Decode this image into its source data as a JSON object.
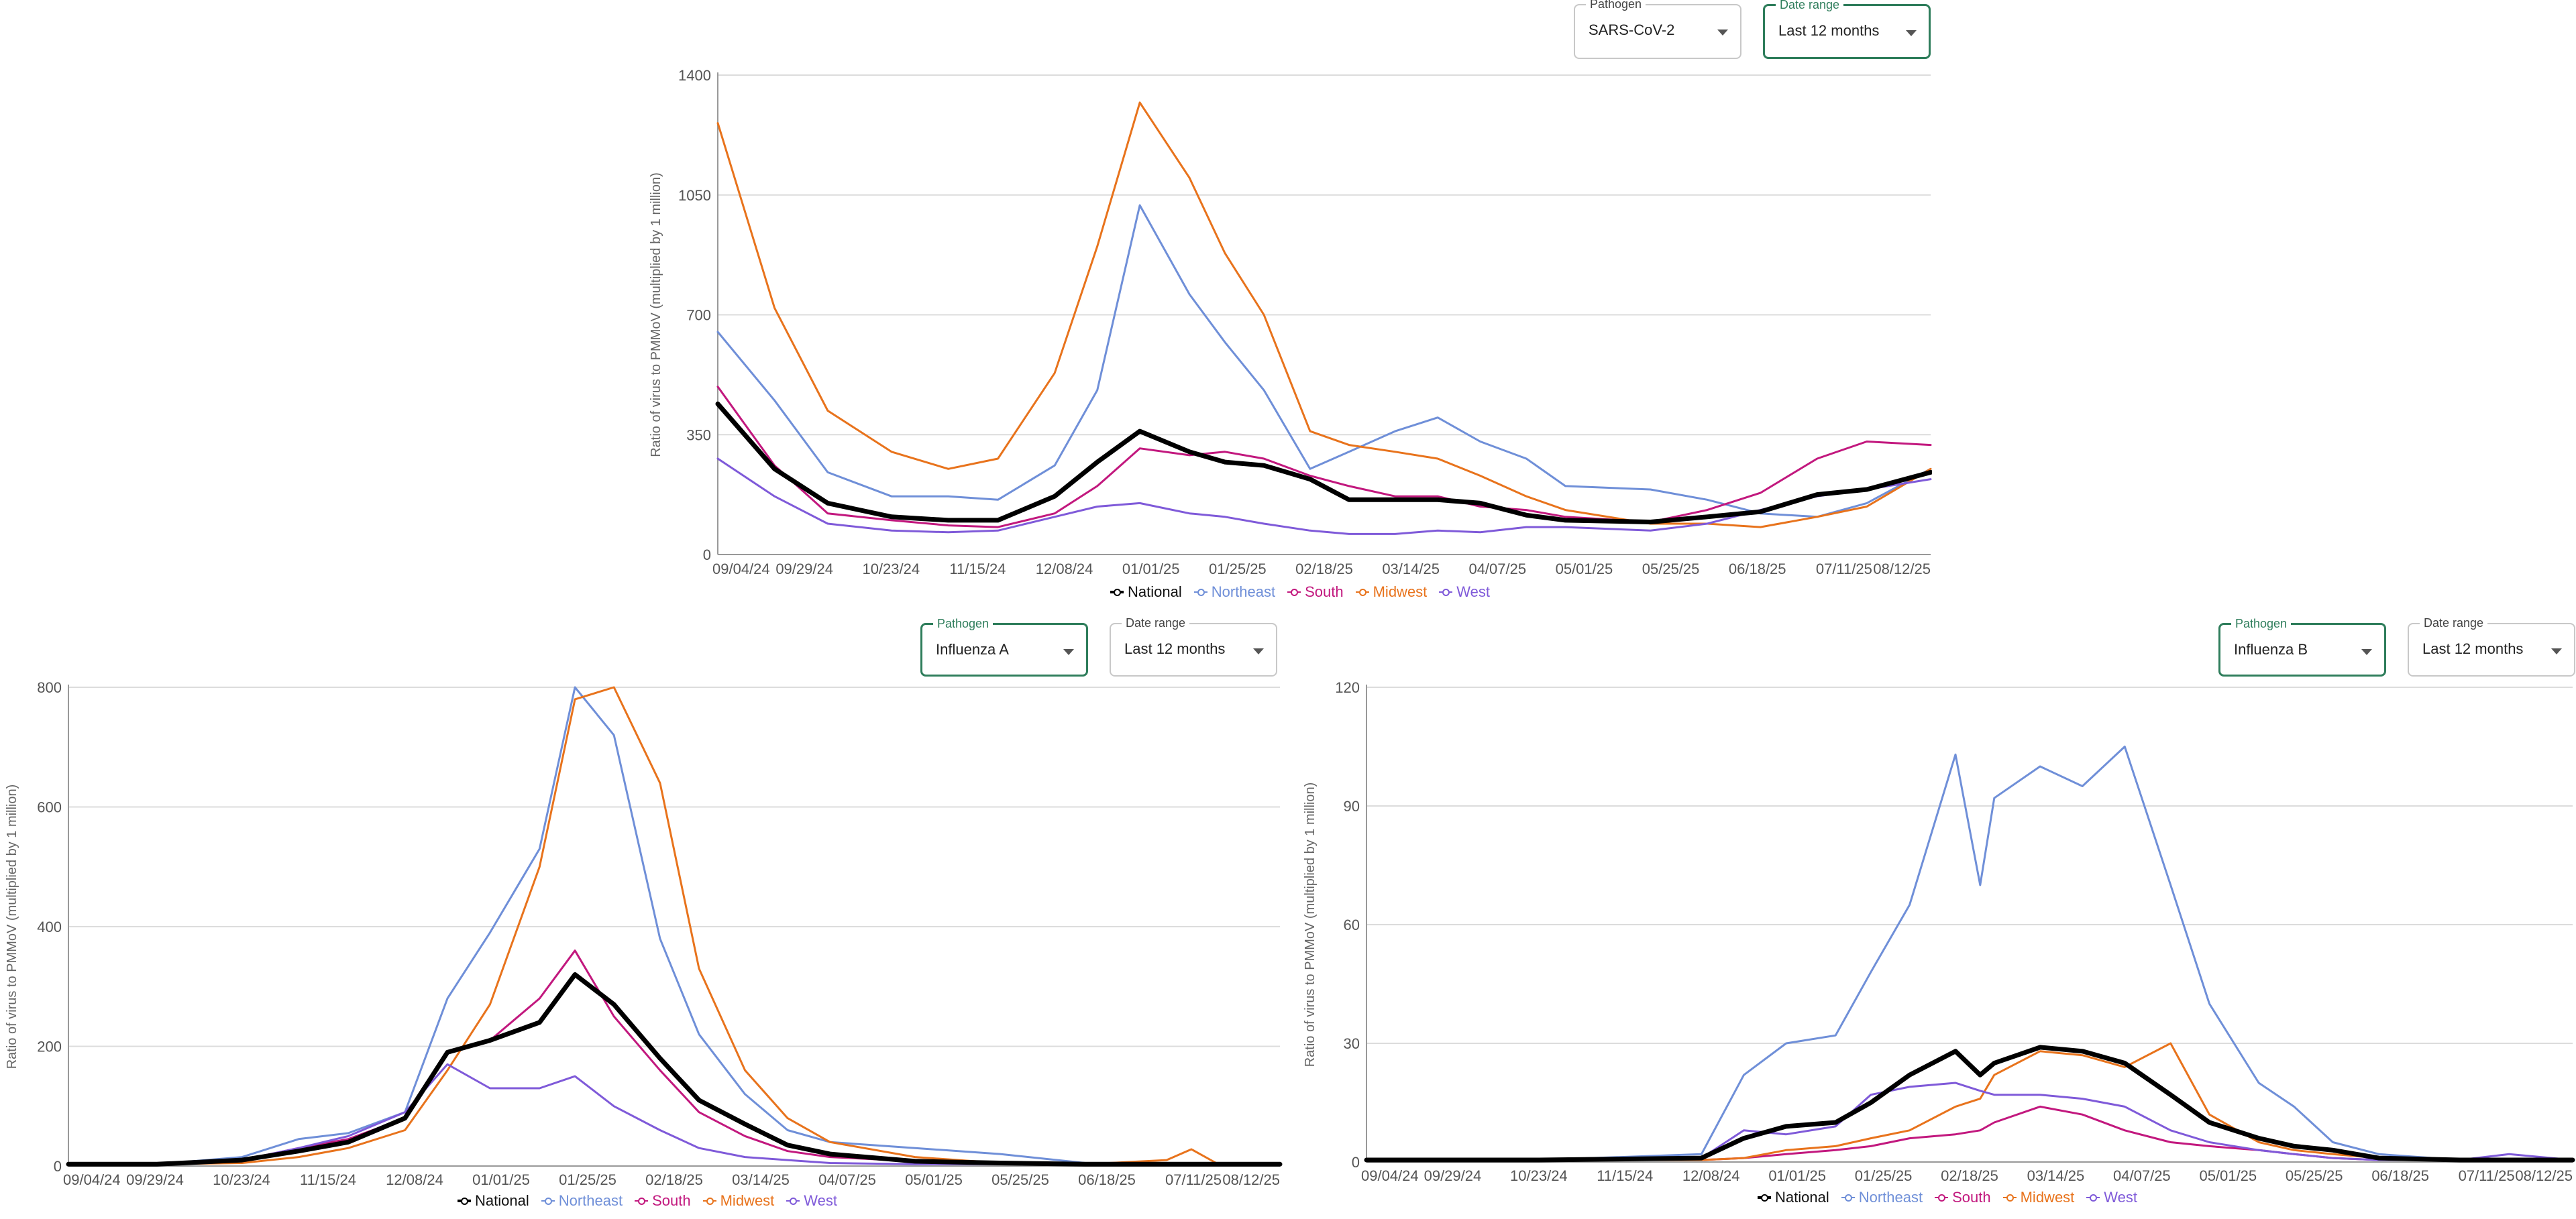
{
  "chart_data": [
    {
      "type": "line",
      "ylabel": "Ratio of virus to PMMoV (multiplied by 1 million)",
      "ylim": [
        0,
        1400
      ],
      "yticks": [
        0,
        350,
        700,
        1050,
        1400
      ],
      "xlim": [
        "09/04/24",
        "08/12/25"
      ],
      "x_tick_labels": [
        "09/04/24",
        "09/29/24",
        "10/23/24",
        "11/15/24",
        "12/08/24",
        "01/01/25",
        "01/25/25",
        "02/18/25",
        "03/14/25",
        "04/07/25",
        "05/01/25",
        "05/25/25",
        "06/18/25",
        "07/11/25",
        "08/12/25"
      ],
      "grid": "horizontal",
      "legend_position": "bottom",
      "controls": {
        "pathogen": {
          "label": "Pathogen",
          "value": "SARS-CoV-2"
        },
        "date_range": {
          "label": "Date range",
          "value": "Last 12 months"
        }
      },
      "x": [
        "09/04/24",
        "09/20/24",
        "10/05/24",
        "10/23/24",
        "11/08/24",
        "11/22/24",
        "12/08/24",
        "12/20/24",
        "01/01/25",
        "01/15/25",
        "01/25/25",
        "02/05/25",
        "02/18/25",
        "03/01/25",
        "03/14/25",
        "03/26/25",
        "04/07/25",
        "04/20/25",
        "05/01/25",
        "05/25/25",
        "06/10/25",
        "06/25/25",
        "07/11/25",
        "07/25/25",
        "08/12/25"
      ],
      "series": [
        {
          "name": "National",
          "color": "#000000",
          "values": [
            440,
            250,
            150,
            110,
            100,
            100,
            170,
            270,
            360,
            300,
            270,
            260,
            220,
            160,
            160,
            160,
            150,
            115,
            100,
            95,
            110,
            125,
            175,
            190,
            240
          ]
        },
        {
          "name": "Northeast",
          "color": "#6f8fd8",
          "values": [
            650,
            450,
            240,
            170,
            170,
            160,
            260,
            480,
            1020,
            760,
            620,
            480,
            250,
            300,
            360,
            400,
            330,
            280,
            200,
            190,
            160,
            120,
            110,
            150,
            250
          ]
        },
        {
          "name": "South",
          "color": "#c2187e",
          "values": [
            490,
            260,
            120,
            100,
            85,
            80,
            120,
            200,
            310,
            290,
            300,
            280,
            230,
            200,
            170,
            170,
            140,
            130,
            110,
            95,
            130,
            180,
            280,
            330,
            320
          ]
        },
        {
          "name": "Midwest",
          "color": "#e8731c",
          "values": [
            1260,
            720,
            420,
            300,
            250,
            280,
            530,
            900,
            1320,
            1100,
            880,
            700,
            360,
            320,
            300,
            280,
            230,
            170,
            130,
            90,
            90,
            80,
            110,
            140,
            250
          ]
        },
        {
          "name": "West",
          "color": "#7f5ad9",
          "values": [
            280,
            170,
            90,
            70,
            65,
            70,
            110,
            140,
            150,
            120,
            110,
            90,
            70,
            60,
            60,
            70,
            65,
            80,
            80,
            70,
            90,
            130,
            170,
            190,
            220
          ]
        }
      ]
    },
    {
      "type": "line",
      "ylabel": "Ratio of virus to PMMoV (multiplied by 1 million)",
      "ylim": [
        0,
        800
      ],
      "yticks": [
        0,
        200,
        400,
        600,
        800
      ],
      "xlim": [
        "09/04/24",
        "08/12/25"
      ],
      "x_tick_labels": [
        "09/04/24",
        "09/29/24",
        "10/23/24",
        "11/15/24",
        "12/08/24",
        "01/01/25",
        "01/25/25",
        "02/18/25",
        "03/14/25",
        "04/07/25",
        "05/01/25",
        "05/25/25",
        "06/18/25",
        "07/11/25",
        "08/12/25"
      ],
      "grid": "horizontal",
      "legend_position": "bottom",
      "controls": {
        "pathogen": {
          "label": "Pathogen",
          "value": "Influenza A"
        },
        "date_range": {
          "label": "Date range",
          "value": "Last 12 months"
        }
      },
      "x": [
        "09/04/24",
        "09/29/24",
        "10/23/24",
        "11/08/24",
        "11/22/24",
        "12/08/24",
        "12/20/24",
        "01/01/25",
        "01/15/25",
        "01/25/25",
        "02/05/25",
        "02/18/25",
        "03/01/25",
        "03/14/25",
        "03/26/25",
        "04/07/25",
        "05/01/25",
        "05/25/25",
        "06/18/25",
        "07/11/25",
        "07/18/25",
        "07/25/25",
        "08/12/25"
      ],
      "series": [
        {
          "name": "National",
          "color": "#000000",
          "values": [
            3,
            3,
            10,
            25,
            40,
            80,
            190,
            210,
            240,
            320,
            270,
            180,
            110,
            70,
            35,
            20,
            8,
            5,
            3,
            3,
            3,
            3,
            3
          ]
        },
        {
          "name": "Northeast",
          "color": "#6f8fd8",
          "values": [
            3,
            3,
            15,
            45,
            55,
            90,
            280,
            390,
            530,
            800,
            720,
            380,
            220,
            120,
            60,
            40,
            30,
            20,
            5,
            3,
            3,
            3,
            3
          ]
        },
        {
          "name": "South",
          "color": "#c2187e",
          "values": [
            3,
            5,
            10,
            30,
            45,
            80,
            190,
            210,
            280,
            360,
            250,
            160,
            90,
            50,
            25,
            15,
            8,
            5,
            3,
            3,
            3,
            3,
            3
          ]
        },
        {
          "name": "Midwest",
          "color": "#e8731c",
          "values": [
            3,
            3,
            5,
            15,
            30,
            60,
            160,
            270,
            500,
            780,
            800,
            640,
            330,
            160,
            80,
            40,
            15,
            5,
            3,
            10,
            28,
            5,
            3
          ]
        },
        {
          "name": "West",
          "color": "#7f5ad9",
          "values": [
            3,
            3,
            10,
            30,
            50,
            90,
            170,
            130,
            130,
            150,
            100,
            60,
            30,
            15,
            10,
            5,
            3,
            3,
            3,
            3,
            3,
            3,
            3
          ]
        }
      ]
    },
    {
      "type": "line",
      "ylabel": "Ratio of virus to PMMoV (multiplied by 1 million)",
      "ylim": [
        0,
        120
      ],
      "yticks": [
        0,
        30,
        60,
        90,
        120
      ],
      "xlim": [
        "09/04/24",
        "08/12/25"
      ],
      "x_tick_labels": [
        "09/04/24",
        "09/29/24",
        "10/23/24",
        "11/15/24",
        "12/08/24",
        "01/01/25",
        "01/25/25",
        "02/18/25",
        "03/14/25",
        "04/07/25",
        "05/01/25",
        "05/25/25",
        "06/18/25",
        "07/11/25",
        "08/12/25"
      ],
      "grid": "horizontal",
      "legend_position": "bottom",
      "controls": {
        "pathogen": {
          "label": "Pathogen",
          "value": "Influenza B"
        },
        "date_range": {
          "label": "Date range",
          "value": "Last 12 months"
        }
      },
      "x": [
        "09/04/24",
        "10/23/24",
        "12/08/24",
        "12/20/24",
        "01/01/25",
        "01/15/25",
        "01/25/25",
        "02/05/25",
        "02/18/25",
        "02/25/25",
        "03/01/25",
        "03/14/25",
        "03/26/25",
        "04/07/25",
        "04/20/25",
        "05/01/25",
        "05/15/25",
        "05/25/25",
        "06/05/25",
        "06/18/25",
        "07/11/25",
        "07/25/25",
        "08/12/25"
      ],
      "series": [
        {
          "name": "National",
          "color": "#000000",
          "values": [
            0.5,
            0.5,
            1,
            6,
            9,
            10,
            15,
            22,
            28,
            22,
            25,
            29,
            28,
            25,
            17,
            10,
            6,
            4,
            3,
            1,
            0.5,
            0.5,
            0.5
          ]
        },
        {
          "name": "Northeast",
          "color": "#6f8fd8",
          "values": [
            0.5,
            0.5,
            2,
            22,
            30,
            32,
            48,
            65,
            103,
            70,
            92,
            100,
            95,
            105,
            70,
            40,
            20,
            14,
            5,
            2,
            0.5,
            0.5,
            0.5
          ]
        },
        {
          "name": "South",
          "color": "#c2187e",
          "values": [
            0.5,
            0.5,
            0.5,
            1,
            2,
            3,
            4,
            6,
            7,
            8,
            10,
            14,
            12,
            8,
            5,
            4,
            3,
            2,
            1,
            0.5,
            0.5,
            0.5,
            0.5
          ]
        },
        {
          "name": "Midwest",
          "color": "#e8731c",
          "values": [
            0.5,
            0.5,
            0.5,
            1,
            3,
            4,
            6,
            8,
            14,
            16,
            22,
            28,
            27,
            24,
            30,
            12,
            5,
            3,
            2,
            1,
            0.5,
            0.5,
            0.5
          ]
        },
        {
          "name": "West",
          "color": "#7f5ad9",
          "values": [
            0.5,
            0.5,
            1,
            8,
            7,
            9,
            17,
            19,
            20,
            18,
            17,
            17,
            16,
            14,
            8,
            5,
            3,
            2,
            1,
            0.5,
            0.5,
            2,
            0.5
          ]
        }
      ]
    }
  ]
}
